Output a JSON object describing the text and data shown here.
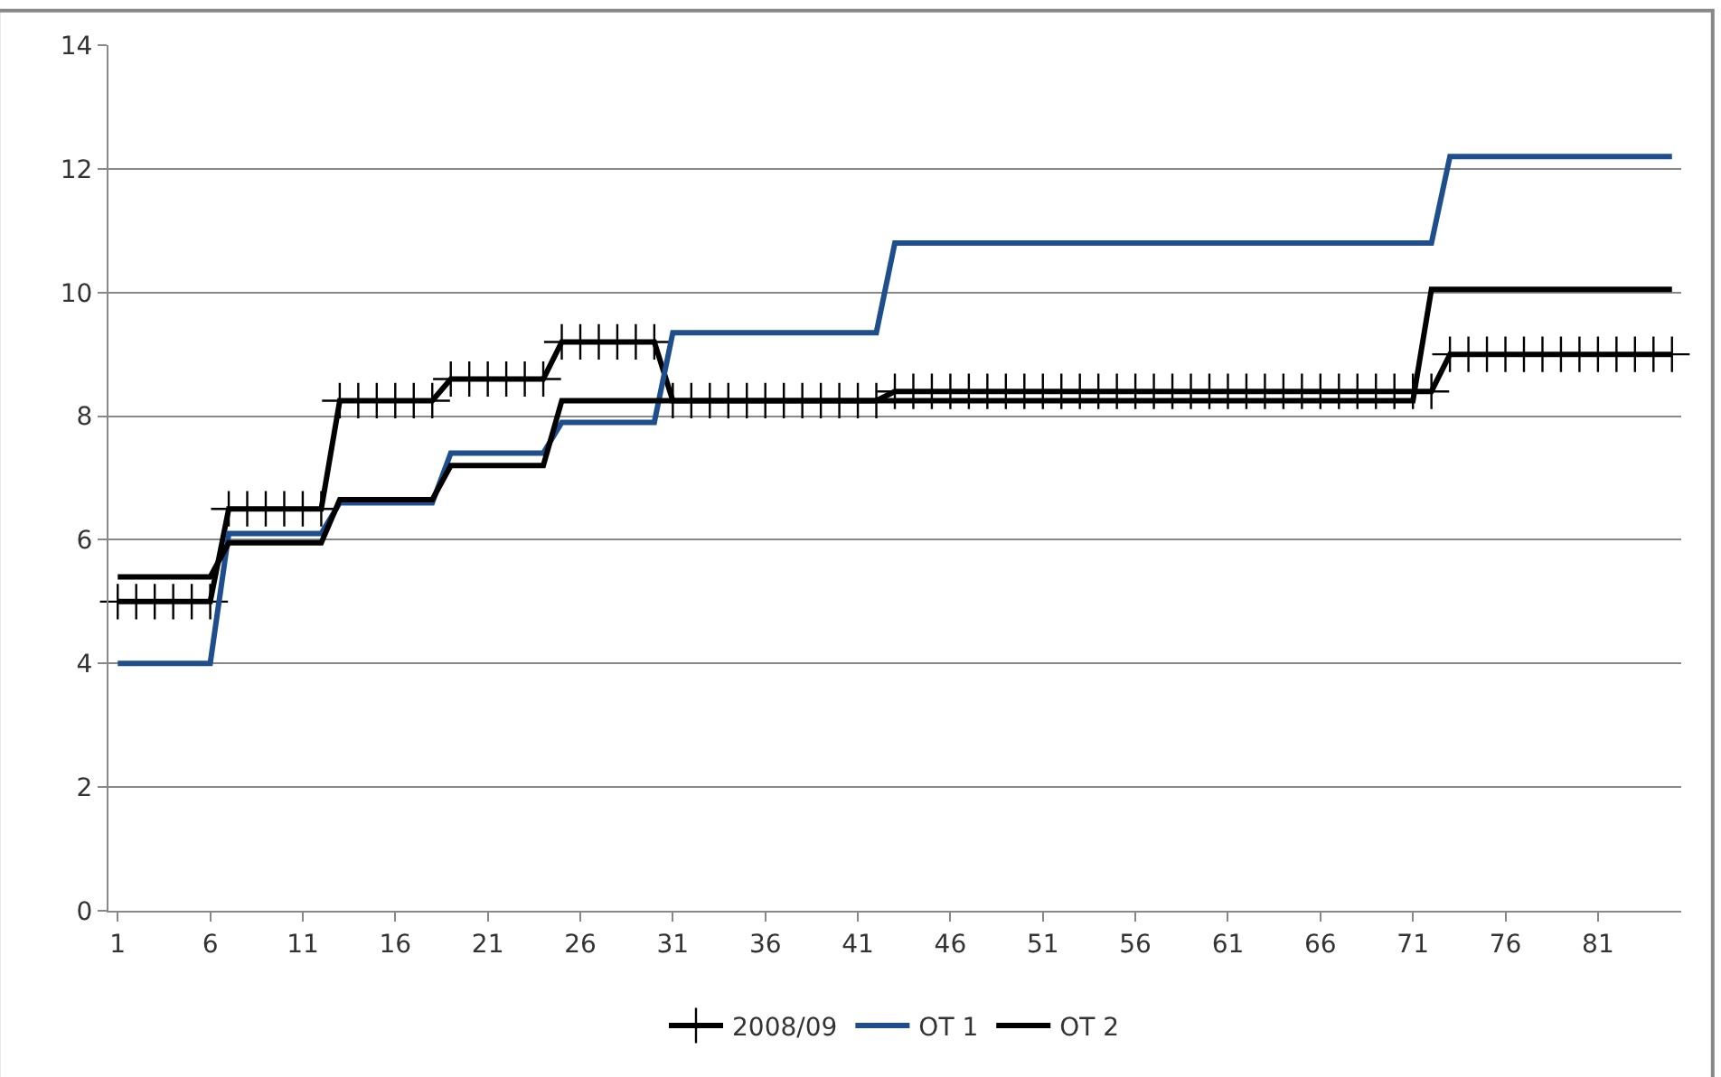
{
  "chart_data": {
    "type": "line",
    "x": [
      1,
      2,
      3,
      4,
      5,
      6,
      7,
      8,
      9,
      10,
      11,
      12,
      13,
      14,
      15,
      16,
      17,
      18,
      19,
      20,
      21,
      22,
      23,
      24,
      25,
      26,
      27,
      28,
      29,
      30,
      31,
      32,
      33,
      34,
      35,
      36,
      37,
      38,
      39,
      40,
      41,
      42,
      43,
      44,
      45,
      46,
      47,
      48,
      49,
      50,
      51,
      52,
      53,
      54,
      55,
      56,
      57,
      58,
      59,
      60,
      61,
      62,
      63,
      64,
      65,
      66,
      67,
      68,
      69,
      70,
      71,
      72,
      73,
      74,
      75,
      76,
      77,
      78,
      79,
      80,
      81,
      82,
      83,
      84,
      85
    ],
    "xlim": [
      0.5,
      85.5
    ],
    "xticks": [
      1,
      6,
      11,
      16,
      21,
      26,
      31,
      36,
      41,
      46,
      51,
      56,
      61,
      66,
      71,
      76,
      81
    ],
    "ylim": [
      0,
      14
    ],
    "yticks": [
      0,
      2,
      4,
      6,
      8,
      10,
      12,
      14
    ],
    "grid": "y",
    "legend": "bottom",
    "series": [
      {
        "name": "2008/09",
        "color": "#000000",
        "marker": "cross",
        "values": [
          5.0,
          5.0,
          5.0,
          5.0,
          5.0,
          5.0,
          6.5,
          6.5,
          6.5,
          6.5,
          6.5,
          6.5,
          8.25,
          8.25,
          8.25,
          8.25,
          8.25,
          8.25,
          8.6,
          8.6,
          8.6,
          8.6,
          8.6,
          8.6,
          9.2,
          9.2,
          9.2,
          9.2,
          9.2,
          9.2,
          8.25,
          8.25,
          8.25,
          8.25,
          8.25,
          8.25,
          8.25,
          8.25,
          8.25,
          8.25,
          8.25,
          8.25,
          8.4,
          8.4,
          8.4,
          8.4,
          8.4,
          8.4,
          8.4,
          8.4,
          8.4,
          8.4,
          8.4,
          8.4,
          8.4,
          8.4,
          8.4,
          8.4,
          8.4,
          8.4,
          8.4,
          8.4,
          8.4,
          8.4,
          8.4,
          8.4,
          8.4,
          8.4,
          8.4,
          8.4,
          8.4,
          8.4,
          9.0,
          9.0,
          9.0,
          9.0,
          9.0,
          9.0,
          9.0,
          9.0,
          9.0,
          9.0,
          9.0,
          9.0,
          9.0
        ]
      },
      {
        "name": "OT 1",
        "color": "#1f4e8c",
        "values": [
          4.0,
          4.0,
          4.0,
          4.0,
          4.0,
          4.0,
          6.1,
          6.1,
          6.1,
          6.1,
          6.1,
          6.1,
          6.6,
          6.6,
          6.6,
          6.6,
          6.6,
          6.6,
          7.4,
          7.4,
          7.4,
          7.4,
          7.4,
          7.4,
          7.9,
          7.9,
          7.9,
          7.9,
          7.9,
          7.9,
          9.35,
          9.35,
          9.35,
          9.35,
          9.35,
          9.35,
          9.35,
          9.35,
          9.35,
          9.35,
          9.35,
          9.35,
          10.8,
          10.8,
          10.8,
          10.8,
          10.8,
          10.8,
          10.8,
          10.8,
          10.8,
          10.8,
          10.8,
          10.8,
          10.8,
          10.8,
          10.8,
          10.8,
          10.8,
          10.8,
          10.8,
          10.8,
          10.8,
          10.8,
          10.8,
          10.8,
          10.8,
          10.8,
          10.8,
          10.8,
          10.8,
          10.8,
          12.2,
          12.2,
          12.2,
          12.2,
          12.2,
          12.2,
          12.2,
          12.2,
          12.2,
          12.2,
          12.2,
          12.2,
          12.2
        ]
      },
      {
        "name": "OT 2",
        "color": "#000000",
        "values": [
          5.4,
          5.4,
          5.4,
          5.4,
          5.4,
          5.4,
          5.95,
          5.95,
          5.95,
          5.95,
          5.95,
          5.95,
          6.65,
          6.65,
          6.65,
          6.65,
          6.65,
          6.65,
          7.2,
          7.2,
          7.2,
          7.2,
          7.2,
          7.2,
          8.25,
          8.25,
          8.25,
          8.25,
          8.25,
          8.25,
          8.25,
          8.25,
          8.25,
          8.25,
          8.25,
          8.25,
          8.25,
          8.25,
          8.25,
          8.25,
          8.25,
          8.25,
          8.25,
          8.25,
          8.25,
          8.25,
          8.25,
          8.25,
          8.25,
          8.25,
          8.25,
          8.25,
          8.25,
          8.25,
          8.25,
          8.25,
          8.25,
          8.25,
          8.25,
          8.25,
          8.25,
          8.25,
          8.25,
          8.25,
          8.25,
          8.25,
          8.25,
          8.25,
          8.25,
          8.25,
          8.25,
          10.05,
          10.05,
          10.05,
          10.05,
          10.05,
          10.05,
          10.05,
          10.05,
          10.05,
          10.05,
          10.05,
          10.05,
          10.05,
          10.05
        ]
      }
    ]
  }
}
